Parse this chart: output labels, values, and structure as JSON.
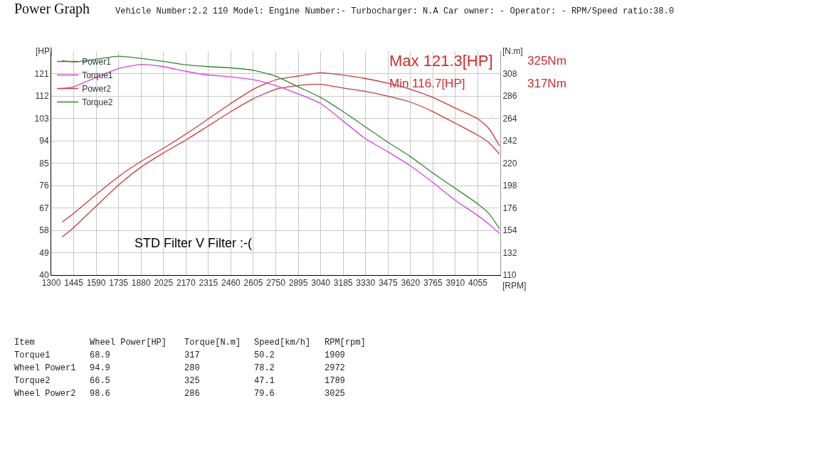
{
  "chart_data": {
    "type": "line",
    "title": "Power Graph",
    "subtitle": "Vehicle Number:2.2 110 Model: Engine Number:- Turbocharger: N.A Car owner: - Operator: - RPM/Speed ratio:38.0",
    "xlabel": "[RPM]",
    "ylabel": "[HP]",
    "y2label": "[N.m]",
    "x": [
      1370,
      1445,
      1590,
      1735,
      1880,
      2025,
      2170,
      2315,
      2460,
      2605,
      2750,
      2895,
      3040,
      3185,
      3330,
      3475,
      3620,
      3765,
      3910,
      4055,
      4125,
      4195
    ],
    "series": [
      {
        "name": "Power1",
        "color": "#c83c3c",
        "values": [
          55.3,
          59.1,
          67.7,
          76.2,
          83.4,
          89.1,
          94.3,
          100.0,
          105.7,
          110.9,
          114.7,
          116.2,
          116.7,
          115.2,
          113.8,
          111.9,
          109.5,
          105.7,
          101.0,
          96.2,
          93.3,
          88.6
        ]
      },
      {
        "name": "Torque1",
        "color": "#e040e0",
        "axis": "y2",
        "values": [
          293.4,
          295.0,
          304.3,
          312.9,
          317,
          314.8,
          310.1,
          306.6,
          304.8,
          302.0,
          296.2,
          288.0,
          278.7,
          261.3,
          243.9,
          231.1,
          217.2,
          200.9,
          183.4,
          168.4,
          160.2,
          150.9
        ]
      },
      {
        "name": "Power2",
        "color": "#c83c3c",
        "values": [
          61.3,
          64.8,
          72.4,
          79.6,
          85.7,
          91.0,
          96.7,
          102.8,
          109.0,
          114.7,
          118.5,
          120.0,
          121.3,
          120.4,
          119.0,
          117.1,
          114.7,
          111.4,
          107.1,
          102.8,
          99.0,
          91.9
        ]
      },
      {
        "name": "Torque2",
        "color": "#2e8b2e",
        "axis": "y2",
        "values": [
          320.6,
          319.4,
          322.2,
          325,
          322.9,
          319.9,
          316.6,
          314.8,
          313.6,
          311.3,
          305.5,
          295.0,
          284.5,
          270.6,
          255.5,
          240.4,
          226.4,
          210.2,
          195.1,
          179.9,
          170.7,
          155.5
        ]
      }
    ],
    "xlim": [
      1300,
      4200
    ],
    "xticks": [
      1300,
      1445,
      1590,
      1735,
      1880,
      2025,
      2170,
      2315,
      2460,
      2605,
      2750,
      2895,
      3040,
      3185,
      3330,
      3475,
      3620,
      3765,
      3910,
      4055
    ],
    "ylim": [
      40,
      130
    ],
    "yticks": [
      40,
      49,
      58,
      67,
      76,
      85,
      94,
      103,
      112,
      121
    ],
    "y2lim": [
      110,
      330
    ],
    "y2ticks": [
      110,
      132,
      154,
      176,
      198,
      220,
      242,
      264,
      286,
      308
    ],
    "grid": true,
    "legend": "top left",
    "marker": "none",
    "line_style": "solid",
    "annotations": [
      "Max 121.3[HP]",
      "325Nm",
      "Min 116.7[HP]",
      "317Nm",
      "STD Filter V Filter :-(",
      "Item",
      "Wheel Power[HP]",
      "Torque[N.m]",
      "Speed[km/h]",
      "RPM[rpm]",
      "Torque1",
      "68.9",
      "317",
      "50.2",
      "1909",
      "Wheel Power1",
      "94.9",
      "280",
      "78.2",
      "2972",
      "Torque2",
      "66.5",
      "325",
      "47.1",
      "1789",
      "Wheel Power2",
      "98.6",
      "286",
      "79.6",
      "3025"
    ]
  }
}
